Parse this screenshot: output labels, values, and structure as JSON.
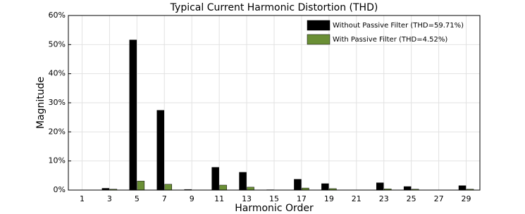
{
  "chart_data": {
    "type": "bar",
    "title": "Typical Current Harmonic Distortion (THD)",
    "xlabel": "Harmonic Order",
    "ylabel": "Magnitude",
    "categories": [
      "1",
      "3",
      "5",
      "7",
      "9",
      "11",
      "13",
      "15",
      "17",
      "19",
      "21",
      "23",
      "25",
      "27",
      "29"
    ],
    "series": [
      {
        "name": "Without Passive Filter (THD=59.71%)",
        "color": "#000000",
        "values": [
          0,
          0.6,
          51.6,
          27.4,
          0.2,
          7.8,
          6.1,
          0.1,
          3.7,
          2.2,
          0,
          2.5,
          1.2,
          0,
          1.5
        ]
      },
      {
        "name": "With Passive Filter (THD=4.52%)",
        "color": "#6a8f35",
        "values": [
          0,
          0.3,
          3.1,
          2.0,
          0,
          1.7,
          1.0,
          0,
          0.7,
          0.5,
          0,
          0.4,
          0.3,
          0,
          0.3
        ]
      }
    ],
    "ylim": [
      0,
      60
    ],
    "yticks": [
      {
        "value": 0,
        "label": "0%"
      },
      {
        "value": 10,
        "label": "10%"
      },
      {
        "value": 20,
        "label": "20%"
      },
      {
        "value": 30,
        "label": "30%"
      },
      {
        "value": 40,
        "label": "40%"
      },
      {
        "value": 50,
        "label": "50%"
      },
      {
        "value": 60,
        "label": "60%"
      }
    ],
    "grid": true,
    "legend": "upper right"
  }
}
